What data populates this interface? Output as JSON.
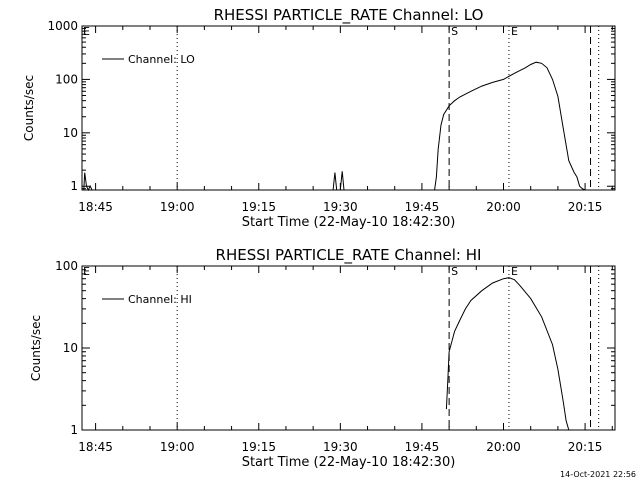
{
  "chart_data": [
    {
      "type": "line",
      "title": "RHESSI PARTICLE_RATE Channel: LO",
      "xlabel": "Start Time (22-May-10 18:42:30)",
      "ylabel": "Counts/sec",
      "yscale": "log",
      "xlim": [
        "18:42:30",
        "20:20:30"
      ],
      "ylim": [
        0.85,
        1000
      ],
      "xticks": [
        "18:45",
        "19:00",
        "19:15",
        "19:30",
        "19:45",
        "20:00",
        "20:15"
      ],
      "yticks": [
        "1",
        "10",
        "100",
        "1000"
      ],
      "legend": {
        "label": "Channel: LO",
        "position": "top-left"
      },
      "series": [
        {
          "name": "Channel: LO",
          "color": "#000000",
          "x": [
            "18:42:50",
            "18:43:00",
            "18:43:20",
            "18:43:40",
            "18:44:00",
            "18:44:20",
            "19:28:40",
            "19:29:00",
            "19:29:20",
            "19:29:40",
            "19:30:00",
            "19:30:20",
            "19:30:40",
            "19:31:00",
            "19:47:20",
            "19:47:40",
            "19:48:00",
            "19:48:30",
            "19:49:00",
            "19:50:00",
            "19:51:00",
            "19:52:00",
            "19:54:00",
            "19:56:00",
            "19:58:00",
            "20:00:00",
            "20:02:00",
            "20:04:00",
            "20:05:00",
            "20:06:00",
            "20:07:00",
            "20:08:00",
            "20:09:00",
            "20:10:00",
            "20:11:00",
            "20:12:00",
            "20:13:00",
            "20:13:30",
            "20:14:00",
            "20:14:30",
            "20:15:00"
          ],
          "y": [
            0.85,
            1.8,
            1.0,
            0.85,
            1.0,
            0.85,
            0.85,
            1.8,
            0.85,
            0.85,
            0.85,
            1.9,
            0.85,
            0.85,
            0.85,
            1.5,
            5,
            14,
            22,
            32,
            40,
            47,
            60,
            75,
            88,
            100,
            130,
            165,
            190,
            210,
            200,
            165,
            100,
            48,
            12,
            3.0,
            1.8,
            1.5,
            1.0,
            0.9,
            0.85
          ]
        }
      ],
      "vlines": [
        {
          "x": "19:00:00",
          "style": "dotted"
        },
        {
          "x": "19:50:00",
          "style": "dashed",
          "label": "S"
        },
        {
          "x": "20:01:00",
          "style": "dotted",
          "label": "E"
        },
        {
          "x": "20:16:00",
          "style": "dashed"
        },
        {
          "x": "20:17:30",
          "style": "dotted"
        }
      ],
      "corner_marks": [
        {
          "x": "18:42:30",
          "label": "E"
        }
      ]
    },
    {
      "type": "line",
      "title": "RHESSI PARTICLE_RATE Channel: HI",
      "xlabel": "Start Time (22-May-10 18:42:30)",
      "ylabel": "Counts/sec",
      "yscale": "log",
      "xlim": [
        "18:42:30",
        "20:20:30"
      ],
      "ylim": [
        1,
        100
      ],
      "xticks": [
        "18:45",
        "19:00",
        "19:15",
        "19:30",
        "19:45",
        "20:00",
        "20:15"
      ],
      "yticks": [
        "1",
        "10",
        "100"
      ],
      "legend": {
        "label": "Channel: HI",
        "position": "top-left"
      },
      "series": [
        {
          "name": "Channel: HI",
          "color": "#000000",
          "x": [
            "19:49:30",
            "19:49:45",
            "19:50:00",
            "19:51:00",
            "19:52:00",
            "19:53:00",
            "19:54:00",
            "19:56:00",
            "19:58:00",
            "20:00:00",
            "20:01:00",
            "20:02:00",
            "20:03:00",
            "20:05:00",
            "20:07:00",
            "20:09:00",
            "20:10:00",
            "20:11:00",
            "20:11:30",
            "20:12:00"
          ],
          "y": [
            1.8,
            4,
            9,
            16,
            22,
            30,
            38,
            50,
            62,
            70,
            72,
            68,
            58,
            40,
            24,
            11,
            5.5,
            2.2,
            1.3,
            1.0
          ]
        }
      ],
      "vlines": [
        {
          "x": "19:00:00",
          "style": "dotted"
        },
        {
          "x": "19:50:00",
          "style": "dashed",
          "label": "S"
        },
        {
          "x": "20:01:00",
          "style": "dotted",
          "label": "E"
        },
        {
          "x": "20:16:00",
          "style": "dashed"
        },
        {
          "x": "20:17:30",
          "style": "dotted"
        }
      ],
      "corner_marks": [
        {
          "x": "18:42:30",
          "label": "E"
        }
      ]
    }
  ],
  "footer": {
    "timestamp": "14-Oct-2021 22:56"
  }
}
